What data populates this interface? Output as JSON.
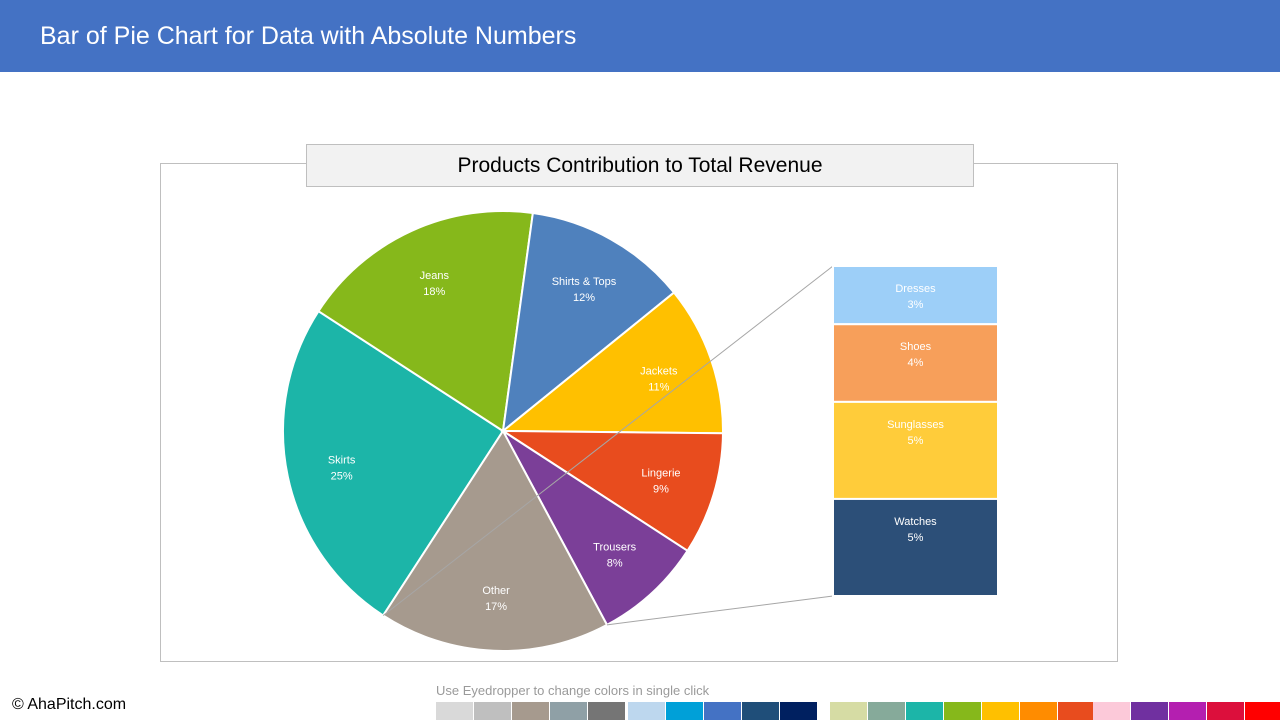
{
  "header": {
    "title": "Bar of Pie Chart for Data with Absolute Numbers"
  },
  "chart_data": {
    "type": "bar-of-pie",
    "title": "Products Contribution to Total Revenue",
    "pie": [
      {
        "label": "Skirts",
        "pct_label": "25%",
        "value": 25,
        "color": "#1cb5a8"
      },
      {
        "label": "Jeans",
        "pct_label": "18%",
        "value": 18,
        "color": "#86b81b"
      },
      {
        "label": "Shirts & Tops",
        "pct_label": "12%",
        "value": 12,
        "color": "#4f81bd"
      },
      {
        "label": "Jackets",
        "pct_label": "11%",
        "value": 11,
        "color": "#ffc000"
      },
      {
        "label": "Lingerie",
        "pct_label": "9%",
        "value": 9,
        "color": "#e84c1e"
      },
      {
        "label": "Trousers",
        "pct_label": "8%",
        "value": 8,
        "color": "#7b3f98"
      },
      {
        "label": "Other",
        "pct_label": "17%",
        "value": 17,
        "color": "#a69a8e"
      }
    ],
    "bar": [
      {
        "label": "Dresses",
        "pct_label": "3%",
        "value": 3,
        "color": "#9dcff8"
      },
      {
        "label": "Shoes",
        "pct_label": "4%",
        "value": 4,
        "color": "#f79f5a"
      },
      {
        "label": "Sunglasses",
        "pct_label": "5%",
        "value": 5,
        "color": "#ffcc3a"
      },
      {
        "label": "Watches",
        "pct_label": "5%",
        "value": 5,
        "color": "#2c4f78"
      }
    ]
  },
  "footer": {
    "credit": "© AhaPitch.com",
    "eyedropper_note": "Use Eyedropper to change colors in single click"
  },
  "palette": [
    "#d9d9d9",
    "#bfbfbf",
    "#a69a8e",
    "#8fa0a6",
    "#757575",
    "#bdd7ee",
    "#00a0d8",
    "#4472c4",
    "#1f4e79",
    "#002060",
    "#d6dca4",
    "#86aa9a",
    "#1cb5a8",
    "#86b81b",
    "#ffc000",
    "#ff8c00",
    "#e84c1e",
    "#fcc9d9",
    "#7030a0",
    "#b41fb0",
    "#dc0f3c",
    "#ff0000"
  ]
}
